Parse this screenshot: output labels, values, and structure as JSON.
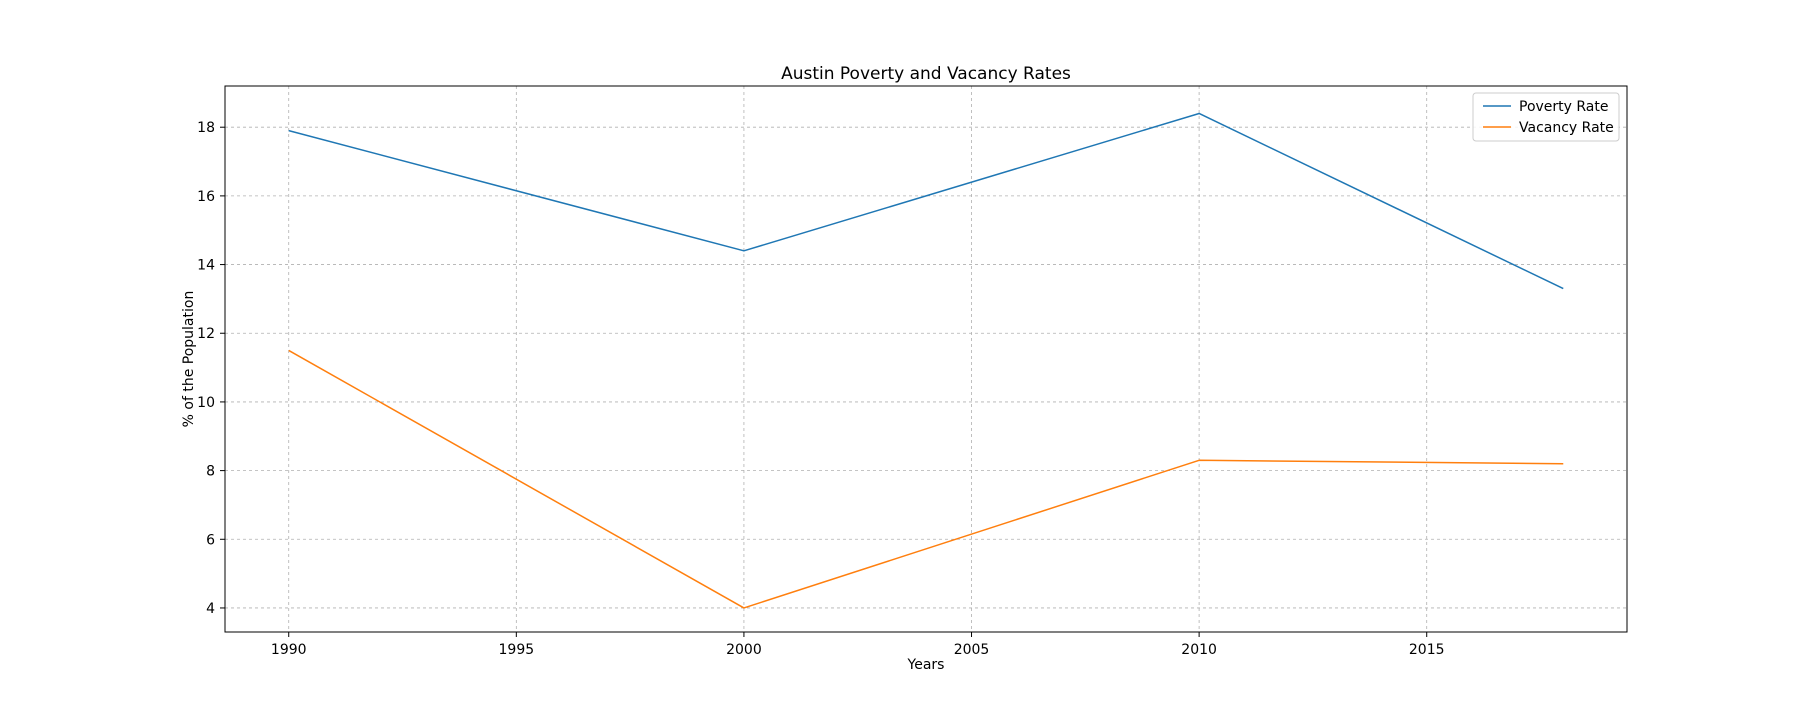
{
  "chart_data": {
    "type": "line",
    "title": "Austin Poverty and Vacancy Rates",
    "xlabel": "Years",
    "ylabel": "% of the Population",
    "x": [
      1990,
      2000,
      2010,
      2018
    ],
    "xlim": [
      1988.6,
      2019.4
    ],
    "ylim": [
      3.3,
      19.2
    ],
    "xticks": [
      1990,
      1995,
      2000,
      2005,
      2010,
      2015
    ],
    "yticks": [
      4,
      6,
      8,
      10,
      12,
      14,
      16,
      18
    ],
    "grid": true,
    "legend_position": "top-right",
    "series": [
      {
        "name": "Poverty Rate",
        "color": "#1f77b4",
        "values": [
          17.9,
          14.4,
          18.4,
          13.3
        ]
      },
      {
        "name": "Vacancy Rate",
        "color": "#ff7f0e",
        "values": [
          11.5,
          4.0,
          8.3,
          8.2
        ]
      }
    ]
  }
}
